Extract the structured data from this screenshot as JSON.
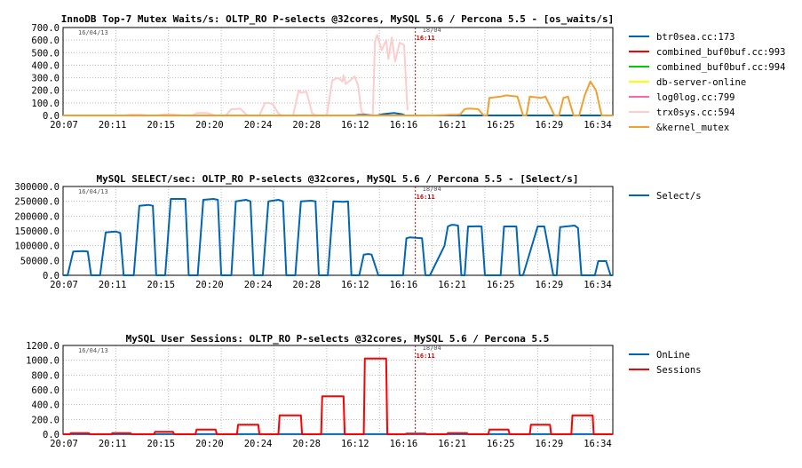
{
  "chart_data": [
    {
      "type": "line",
      "title": "InnoDB Top-7 Mutex Waits/s: OLTP_RO P-selects @32cores, MySQL 5.6 / Percona 5.5 - [os_waits/s]",
      "x_ticks": [
        "20:07",
        "20:11",
        "20:15",
        "20:20",
        "20:24",
        "20:28",
        "16:12",
        "16:16",
        "16:21",
        "16:25",
        "16:29",
        "16:34"
      ],
      "y_ticks": [
        "0.0",
        "100.0",
        "200.0",
        "300.0",
        "400.0",
        "500.0",
        "600.0",
        "700.0"
      ],
      "ylim": [
        0,
        700
      ],
      "date_left": "16/04/13",
      "date_right": "18/04",
      "marker_label": "16:11",
      "legend": [
        {
          "name": "btr0sea.cc:173",
          "color": "#0066b3"
        },
        {
          "name": "combined_buf0buf.cc:993",
          "color": "#ff0000"
        },
        {
          "name": "combined_buf0buf.cc:994",
          "color": "#00cc00"
        },
        {
          "name": "db-server-online",
          "color": "#ffff00"
        },
        {
          "name": "log0log.cc:799",
          "color": "#ff66aa"
        },
        {
          "name": "trx0sys.cc:594",
          "color": "#ffcccc"
        },
        {
          "name": "&kernel_mutex",
          "color": "#f0a030"
        }
      ],
      "series": [
        {
          "name": "trx0sys.cc:594",
          "color": "#ffcccc",
          "x": [
            0,
            4.5,
            5,
            5.5,
            6,
            6.4,
            6.8,
            7.3,
            7.5,
            8,
            8.5,
            9,
            9.4,
            9.8,
            10.3,
            10.5,
            11,
            11.5,
            12,
            12.4,
            12.8,
            13.3,
            13.5,
            14,
            14.5,
            15,
            15.4,
            15.8,
            16.3,
            16.5,
            17,
            17.5,
            18,
            18.3,
            18.7,
            19.2,
            19.5,
            20,
            20.5,
            21,
            21.2,
            21.7,
            22.2,
            22.5,
            23,
            23.5,
            24,
            24.5,
            24.9,
            25,
            25.2,
            25.6,
            26,
            26.3,
            26.6,
            27,
            27.3,
            27.6,
            27.8,
            28,
            28.4,
            28.6,
            28.8,
            29,
            29.3,
            29.6,
            30,
            30.4,
            30.7
          ],
          "values": [
            0,
            0,
            0,
            0,
            5,
            5,
            5,
            3,
            0,
            0,
            0,
            8,
            8,
            8,
            3,
            0,
            0,
            0,
            20,
            20,
            20,
            8,
            0,
            0,
            0,
            50,
            50,
            55,
            10,
            0,
            0,
            0,
            100,
            100,
            90,
            15,
            0,
            0,
            0,
            200,
            180,
            190,
            20,
            0,
            0,
            0,
            280,
            300,
            270,
            320,
            250,
            280,
            310,
            240,
            30,
            0,
            0,
            0,
            590,
            640,
            520,
            560,
            600,
            450,
            620,
            430,
            580,
            560,
            40
          ]
        },
        {
          "name": "btr0sea.cc:173",
          "color": "#0066b3",
          "x": [
            0,
            26,
            26.3,
            27,
            27.6,
            28,
            28.5,
            29,
            29.5,
            30.2,
            30.5,
            49
          ],
          "values": [
            0,
            0,
            5,
            5,
            0,
            0,
            10,
            15,
            20,
            10,
            0,
            0
          ]
        },
        {
          "name": "&kernel_mutex",
          "color": "#f0a030",
          "x": [
            0,
            30.5,
            31,
            32.5,
            33,
            34,
            34.5,
            35,
            35.4,
            35.8,
            36.2,
            37,
            37.5,
            37.8,
            38,
            39,
            39.5,
            40.5,
            41,
            41.3,
            41.6,
            42.6,
            43,
            43.8,
            44.2,
            44.6,
            45,
            45.5,
            46,
            46.5,
            47,
            47.5,
            48,
            49
          ],
          "values": [
            0,
            0,
            0,
            0,
            0,
            3,
            5,
            5,
            8,
            50,
            55,
            50,
            0,
            0,
            140,
            150,
            160,
            150,
            0,
            0,
            150,
            140,
            150,
            0,
            0,
            140,
            150,
            0,
            0,
            160,
            270,
            200,
            0,
            0
          ]
        }
      ]
    },
    {
      "type": "line",
      "title": "MySQL SELECT/sec: OLTP_RO P-selects @32cores, MySQL 5.6 / Percona 5.5 - [Select/s]",
      "x_ticks": [
        "20:07",
        "20:11",
        "20:15",
        "20:20",
        "20:24",
        "20:28",
        "16:12",
        "16:16",
        "16:21",
        "16:25",
        "16:29",
        "16:34"
      ],
      "y_ticks": [
        "0.0",
        "50000.0",
        "100000.0",
        "150000.0",
        "200000.0",
        "250000.0",
        "300000.0"
      ],
      "ylim": [
        0,
        300000
      ],
      "date_left": "16/04/13",
      "date_right": "18/04",
      "marker_label": "16:11",
      "legend": [
        {
          "name": "Select/s",
          "color": "#0066b3"
        }
      ],
      "series": [
        {
          "name": "Select/s",
          "color": "#0066b3",
          "x": [
            0,
            0.4,
            0.9,
            1.8,
            2.2,
            2.5,
            3.3,
            3.8,
            4.7,
            5.1,
            5.4,
            6.3,
            6.8,
            7.6,
            8.0,
            8.3,
            9.1,
            9.6,
            10.5,
            10.9,
            11.2,
            12.0,
            12.5,
            13.4,
            13.8,
            14.1,
            15.0,
            15.4,
            16.3,
            16.7,
            17.0,
            17.8,
            18.3,
            19.2,
            19.6,
            19.9,
            20.7,
            21.2,
            22.1,
            22.5,
            22.8,
            23.6,
            24.1,
            25.0,
            25.4,
            25.7,
            26.4,
            26.8,
            27.2,
            27.5,
            28.1,
            28.4,
            30.3,
            30.6,
            30.9,
            32.0,
            32.3,
            32.7,
            34.0,
            34.3,
            34.6,
            34.9,
            35.2,
            35.5,
            35.8,
            36.1,
            36.4,
            37.0,
            37.3,
            37.6,
            39.0,
            39.3,
            39.6,
            40.4,
            40.7,
            41.0,
            42.3,
            42.6,
            42.9,
            43.7,
            44.0,
            44.3,
            45.6,
            45.9,
            46.2,
            47.4,
            47.7,
            48.0,
            48.4,
            48.8,
            49
          ],
          "values": [
            0,
            0,
            80000,
            82000,
            80000,
            0,
            0,
            145000,
            148000,
            143000,
            0,
            0,
            235000,
            238000,
            235000,
            0,
            0,
            258000,
            258000,
            258000,
            0,
            0,
            255000,
            258000,
            255000,
            0,
            0,
            250000,
            255000,
            250000,
            0,
            0,
            250000,
            255000,
            250000,
            0,
            0,
            250000,
            252000,
            250000,
            0,
            0,
            250000,
            248000,
            250000,
            0,
            0,
            70000,
            72000,
            70000,
            0,
            0,
            0,
            125000,
            128000,
            125000,
            0,
            0,
            100000,
            165000,
            170000,
            170000,
            168000,
            0,
            0,
            165000,
            165000,
            166000,
            165000,
            0,
            0,
            165000,
            165000,
            165000,
            0,
            0,
            165000,
            165000,
            165000,
            0,
            0,
            163000,
            168000,
            160000,
            0,
            0,
            48000,
            48000,
            48000,
            0,
            0
          ]
        }
      ]
    },
    {
      "type": "line",
      "title": "MySQL User Sessions: OLTP_RO P-selects @32cores, MySQL 5.6 / Percona 5.5",
      "x_ticks": [
        "20:07",
        "20:11",
        "20:15",
        "20:20",
        "20:24",
        "20:28",
        "16:12",
        "16:16",
        "16:21",
        "16:25",
        "16:29",
        "16:34"
      ],
      "y_ticks": [
        "0.0",
        "200.0",
        "400.0",
        "600.0",
        "800.0",
        "1000.0",
        "1200.0"
      ],
      "ylim": [
        0,
        1200
      ],
      "date_left": "16/04/13",
      "date_right": "18/04",
      "marker_label": "16:11",
      "legend": [
        {
          "name": "OnLine",
          "color": "#0066b3"
        },
        {
          "name": "Sessions",
          "color": "#ff0000"
        }
      ],
      "series": [
        {
          "name": "OnLine",
          "color": "#0066b3",
          "x": [
            0,
            49
          ],
          "values": [
            1,
            1
          ]
        },
        {
          "name": "Sessions",
          "color": "#ff0000",
          "x": [
            0,
            0.6,
            0.7,
            2.3,
            2.4,
            4.3,
            4.4,
            6.0,
            6.1,
            8.1,
            8.2,
            9.8,
            9.9,
            11.8,
            11.9,
            13.6,
            13.7,
            15.5,
            15.6,
            17.4,
            17.5,
            19.2,
            19.3,
            21.2,
            21.3,
            23.0,
            23.1,
            25.0,
            25.1,
            26.8,
            26.9,
            28.8,
            28.9,
            30.5,
            30.6,
            32.3,
            32.4,
            34.2,
            34.3,
            36.0,
            36.1,
            37.9,
            38.0,
            39.7,
            39.8,
            41.6,
            41.7,
            43.4,
            43.5,
            45.3,
            45.4,
            47.2,
            47.3,
            49
          ],
          "values": [
            0,
            0,
            16,
            16,
            0,
            0,
            16,
            16,
            0,
            0,
            32,
            32,
            0,
            0,
            64,
            64,
            0,
            0,
            128,
            128,
            0,
            0,
            256,
            256,
            0,
            0,
            512,
            512,
            0,
            0,
            1024,
            1024,
            0,
            0,
            8,
            8,
            0,
            0,
            16,
            16,
            0,
            0,
            64,
            64,
            0,
            0,
            128,
            128,
            0,
            0,
            256,
            256,
            0,
            0
          ]
        }
      ]
    }
  ]
}
